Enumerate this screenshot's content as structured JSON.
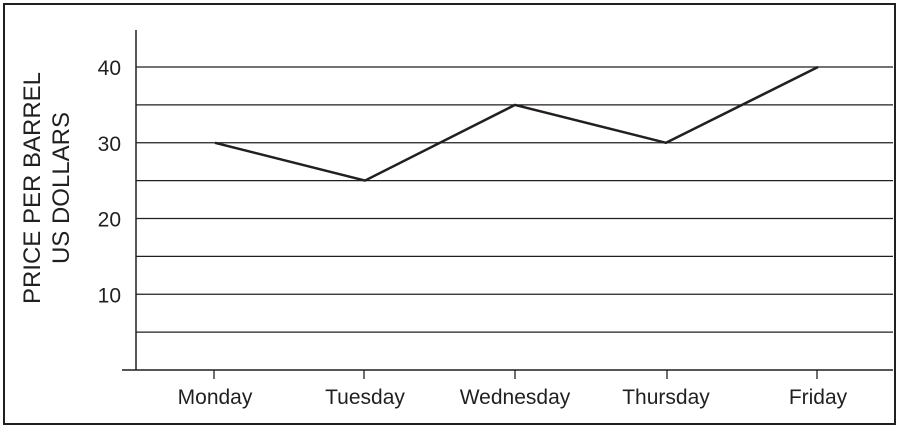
{
  "chart_data": {
    "type": "line",
    "categories": [
      "Monday",
      "Tuesday",
      "Wednesday",
      "Thursday",
      "Friday"
    ],
    "series": [
      {
        "values": [
          30,
          25,
          35,
          30,
          40
        ]
      }
    ],
    "ylabel_lines": [
      "PRICE PER BARREL",
      "US DOLLARS"
    ],
    "yticks": [
      10,
      20,
      30,
      40
    ],
    "gridlines": [
      5,
      10,
      15,
      20,
      25,
      30,
      35,
      40
    ],
    "ylim": [
      0,
      45
    ],
    "grid": "horizontal",
    "colors": {
      "line": "#231f20",
      "grid": "#231f20",
      "text": "#231f20"
    }
  }
}
